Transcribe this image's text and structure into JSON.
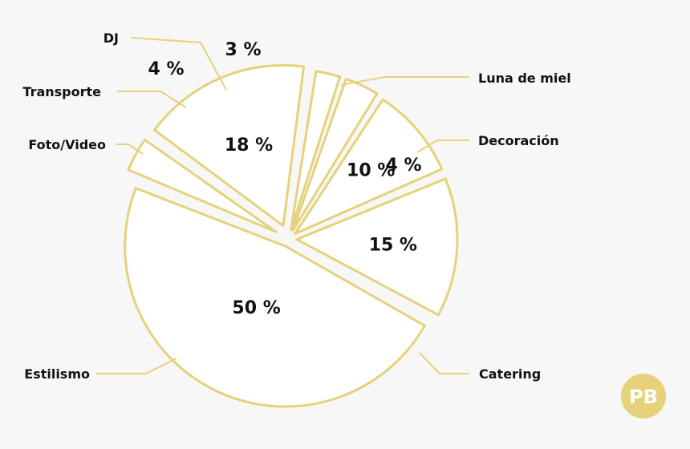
{
  "chart_data": {
    "type": "pie",
    "title": "",
    "legend": "none",
    "unit": "%",
    "slices": [
      {
        "label": "Catering",
        "value": 50,
        "display": "50 %"
      },
      {
        "label": "Estilismo",
        "value": 15,
        "display": "15 %"
      },
      {
        "label": "Foto/Video",
        "value": 10,
        "display": "10 %"
      },
      {
        "label": "Transporte",
        "value": 4,
        "display": "4 %"
      },
      {
        "label": "DJ",
        "value": 3,
        "display": "3 %"
      },
      {
        "label": "Luna de miel",
        "value": 18,
        "display": "18 %"
      },
      {
        "label": "Decoración",
        "value": 4,
        "display": "4 %"
      }
    ]
  },
  "logo": {
    "text": "PB",
    "icon": "pb-logo-icon"
  },
  "colors": {
    "background": "#f7f7f7",
    "slice_fill": "#ffffff",
    "slice_stroke": "#e6d27a",
    "leader": "#e6d27a",
    "text": "#111111",
    "logo": "#e6d27a"
  }
}
